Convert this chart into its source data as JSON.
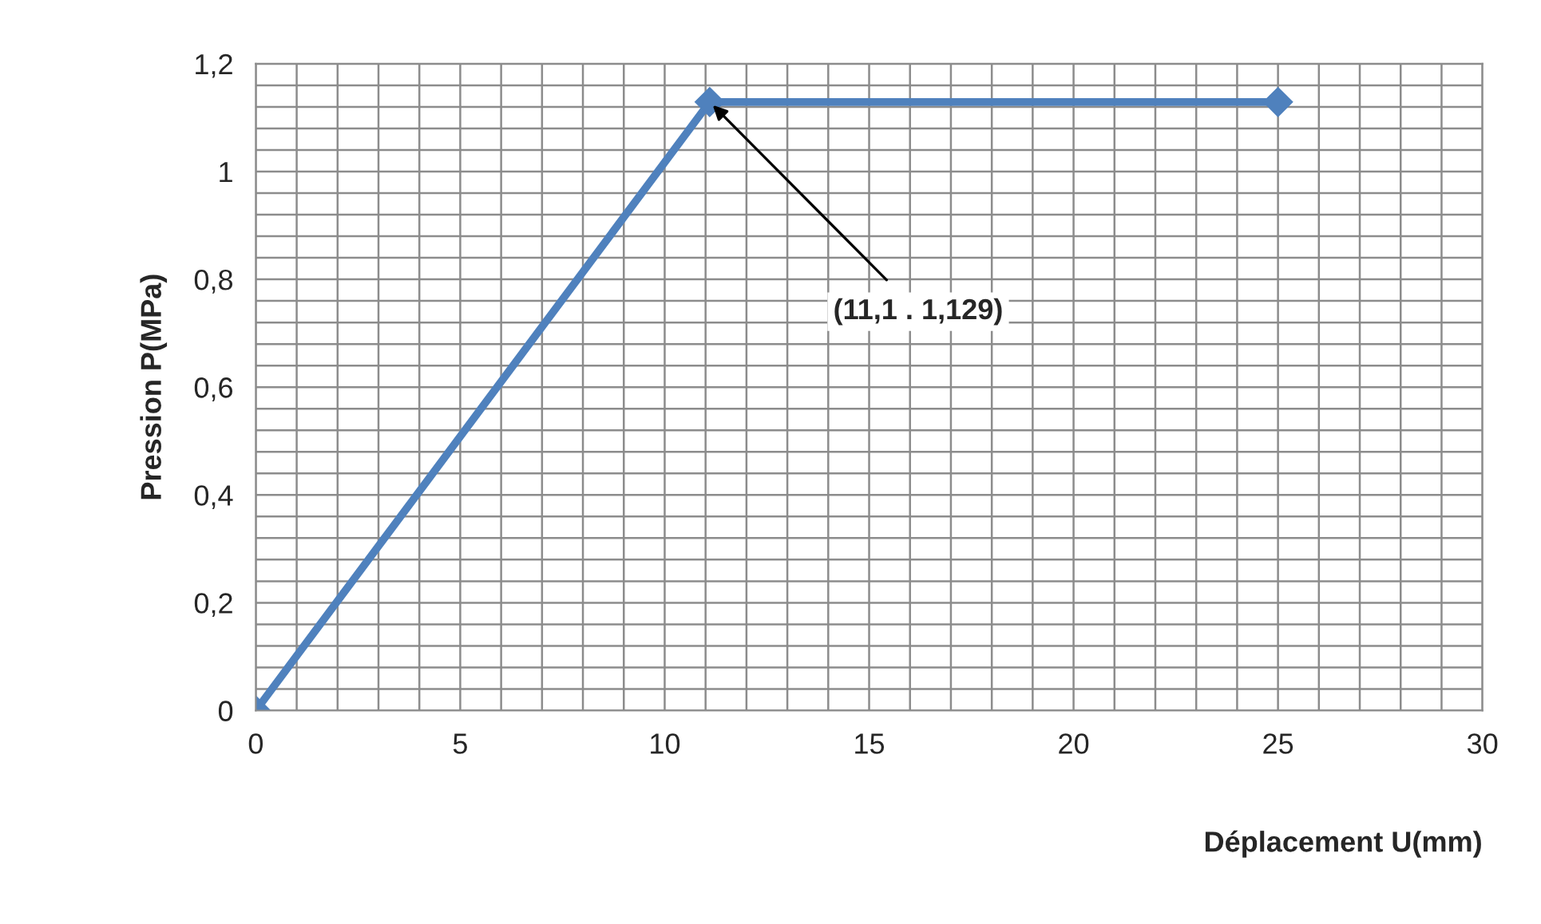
{
  "chart_data": {
    "type": "line",
    "xlabel": "Déplacement U(mm)",
    "ylabel": "Pression P(MPa)",
    "x": [
      0,
      11.1,
      25
    ],
    "series": [
      {
        "color": "#4f81bd",
        "values": [
          0,
          1.129,
          1.129
        ]
      }
    ],
    "marker": "diamond",
    "line_style": "solid",
    "grid": true,
    "legend": false,
    "xlim": [
      0,
      30
    ],
    "ylim": [
      0,
      1.2
    ],
    "xticks": [
      0,
      {
        "value": 1,
        "label": null
      },
      {
        "value": 2,
        "label": null
      },
      {
        "value": 3,
        "label": null
      },
      {
        "value": 4,
        "label": null
      },
      5,
      {
        "value": 6,
        "label": null
      },
      {
        "value": 7,
        "label": null
      },
      {
        "value": 8,
        "label": null
      },
      {
        "value": 9,
        "label": null
      },
      10,
      {
        "value": 11,
        "label": null
      },
      {
        "value": 12,
        "label": null
      },
      {
        "value": 13,
        "label": null
      },
      {
        "value": 14,
        "label": null
      },
      15,
      {
        "value": 16,
        "label": null
      },
      {
        "value": 17,
        "label": null
      },
      {
        "value": 18,
        "label": null
      },
      {
        "value": 19,
        "label": null
      },
      20,
      {
        "value": 21,
        "label": null
      },
      {
        "value": 22,
        "label": null
      },
      {
        "value": 23,
        "label": null
      },
      {
        "value": 24,
        "label": null
      },
      25,
      {
        "value": 26,
        "label": null
      },
      {
        "value": 27,
        "label": null
      },
      {
        "value": 28,
        "label": null
      },
      {
        "value": 29,
        "label": null
      },
      30
    ],
    "yticks": [
      0,
      {
        "value": 0.04,
        "label": null
      },
      {
        "value": 0.08,
        "label": null
      },
      {
        "value": 0.12,
        "label": null
      },
      {
        "value": 0.16,
        "label": null
      },
      {
        "value": 0.2,
        "label": "0,2"
      },
      {
        "value": 0.24,
        "label": null
      },
      {
        "value": 0.28,
        "label": null
      },
      {
        "value": 0.32,
        "label": null
      },
      {
        "value": 0.36,
        "label": null
      },
      {
        "value": 0.4,
        "label": "0,4"
      },
      {
        "value": 0.44,
        "label": null
      },
      {
        "value": 0.48,
        "label": null
      },
      {
        "value": 0.52,
        "label": null
      },
      {
        "value": 0.56,
        "label": null
      },
      {
        "value": 0.6,
        "label": "0,6"
      },
      {
        "value": 0.64,
        "label": null
      },
      {
        "value": 0.68,
        "label": null
      },
      {
        "value": 0.72,
        "label": null
      },
      {
        "value": 0.76,
        "label": null
      },
      {
        "value": 0.8,
        "label": "0,8"
      },
      {
        "value": 0.84,
        "label": null
      },
      {
        "value": 0.88,
        "label": null
      },
      {
        "value": 0.92,
        "label": null
      },
      {
        "value": 0.96,
        "label": null
      },
      1,
      {
        "value": 1.04,
        "label": null
      },
      {
        "value": 1.08,
        "label": null
      },
      {
        "value": 1.12,
        "label": null
      },
      {
        "value": 1.16,
        "label": null
      },
      {
        "value": 1.2,
        "label": "1,2"
      }
    ],
    "annotations": [
      {
        "text": "(11,1 . 1,129)",
        "x": 11.1,
        "y": 1.129
      }
    ]
  }
}
